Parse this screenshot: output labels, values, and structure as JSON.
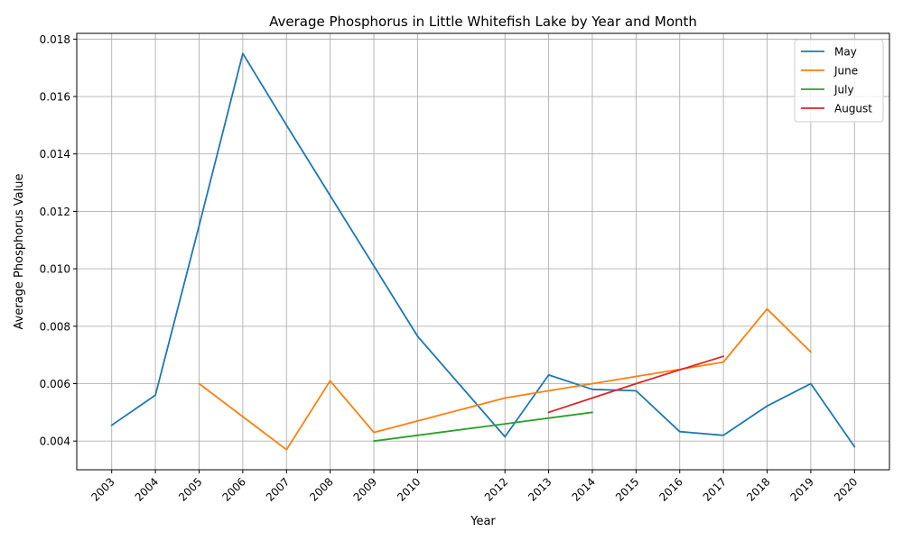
{
  "chart_data": {
    "type": "line",
    "title": "Average Phosphorus in Little Whitefish Lake by Year and Month",
    "xlabel": "Year",
    "ylabel": "Average Phosphorus Value",
    "xlim": [
      2002.2,
      2020.8
    ],
    "ylim": [
      0.003,
      0.0182
    ],
    "x_ticks": [
      2003,
      2004,
      2005,
      2006,
      2007,
      2008,
      2009,
      2010,
      2012,
      2013,
      2014,
      2015,
      2016,
      2017,
      2018,
      2019,
      2020
    ],
    "x_tick_labels": [
      "2003",
      "2004",
      "2005",
      "2006",
      "2007",
      "2008",
      "2009",
      "2010",
      "2012",
      "2013",
      "2014",
      "2015",
      "2016",
      "2017",
      "2018",
      "2019",
      "2020"
    ],
    "y_ticks": [
      0.004,
      0.006,
      0.008,
      0.01,
      0.012,
      0.014,
      0.016,
      0.018
    ],
    "y_tick_labels": [
      "0.004",
      "0.006",
      "0.008",
      "0.010",
      "0.012",
      "0.014",
      "0.016",
      "0.018"
    ],
    "grid": true,
    "legend_position": "top-right",
    "series": [
      {
        "name": "May",
        "color": "#1f77b4",
        "x": [
          2003,
          2004,
          2005,
          2006,
          2007,
          2008,
          2009,
          2010,
          2012,
          2013,
          2014,
          2015,
          2016,
          2017,
          2018,
          2019,
          2020
        ],
        "values": [
          0.00455,
          0.0056,
          0.0115,
          0.0175,
          0.015,
          0.01255,
          0.0101,
          0.00765,
          0.00415,
          0.0063,
          0.0058,
          0.00575,
          0.00433,
          0.0042,
          0.00522,
          0.006,
          0.0038
        ]
      },
      {
        "name": "June",
        "color": "#ff7f0e",
        "x": [
          2005,
          2006,
          2007,
          2008,
          2009,
          2010,
          2012,
          2013,
          2014,
          2015,
          2016,
          2017,
          2018,
          2019
        ],
        "values": [
          0.006,
          0.00485,
          0.0037,
          0.0061,
          0.0043,
          0.0047,
          0.0055,
          0.00575,
          0.006,
          0.00625,
          0.0065,
          0.00675,
          0.0086,
          0.0071
        ]
      },
      {
        "name": "July",
        "color": "#2ca02c",
        "x": [
          2009,
          2010,
          2012,
          2013,
          2014
        ],
        "values": [
          0.004,
          0.0042,
          0.0046,
          0.0048,
          0.005
        ]
      },
      {
        "name": "August",
        "color": "#d62728",
        "x": [
          2013,
          2014,
          2015,
          2016,
          2017
        ],
        "values": [
          0.005,
          0.0055,
          0.006,
          0.00648,
          0.00695
        ]
      }
    ]
  }
}
